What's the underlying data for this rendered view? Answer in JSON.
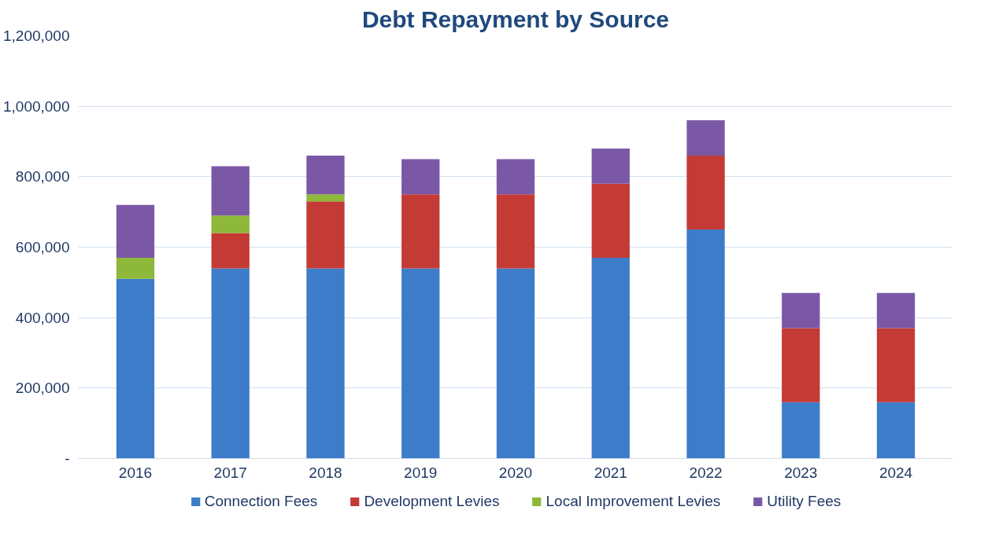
{
  "chart_data": {
    "type": "bar",
    "title": "Debt Repayment by Source",
    "stacked": true,
    "categories": [
      "2016",
      "2017",
      "2018",
      "2019",
      "2020",
      "2021",
      "2022",
      "2023",
      "2024"
    ],
    "series": [
      {
        "name": "Connection Fees",
        "color": "#3d7cc9",
        "values": [
          510000,
          540000,
          540000,
          540000,
          540000,
          570000,
          650000,
          160000,
          160000
        ]
      },
      {
        "name": "Development Levies",
        "color": "#c43a34",
        "values": [
          0,
          100000,
          190000,
          210000,
          210000,
          210000,
          210000,
          210000,
          210000
        ]
      },
      {
        "name": "Local Improvement Levies",
        "color": "#8db83a",
        "values": [
          60000,
          50000,
          20000,
          0,
          0,
          0,
          0,
          0,
          0
        ]
      },
      {
        "name": "Utility Fees",
        "color": "#7b58a6",
        "values": [
          150000,
          140000,
          110000,
          100000,
          100000,
          100000,
          100000,
          100000,
          100000
        ]
      }
    ],
    "ylim": [
      0,
      1200000
    ],
    "yticks": [
      {
        "value": 0,
        "label": "-"
      },
      {
        "value": 200000,
        "label": "200,000"
      },
      {
        "value": 400000,
        "label": "400,000"
      },
      {
        "value": 600000,
        "label": "600,000"
      },
      {
        "value": 800000,
        "label": "800,000"
      },
      {
        "value": 1000000,
        "label": "1,000,000"
      },
      {
        "value": 1200000,
        "label": "1,200,000"
      }
    ],
    "grid": "y",
    "legend": "bottom"
  }
}
